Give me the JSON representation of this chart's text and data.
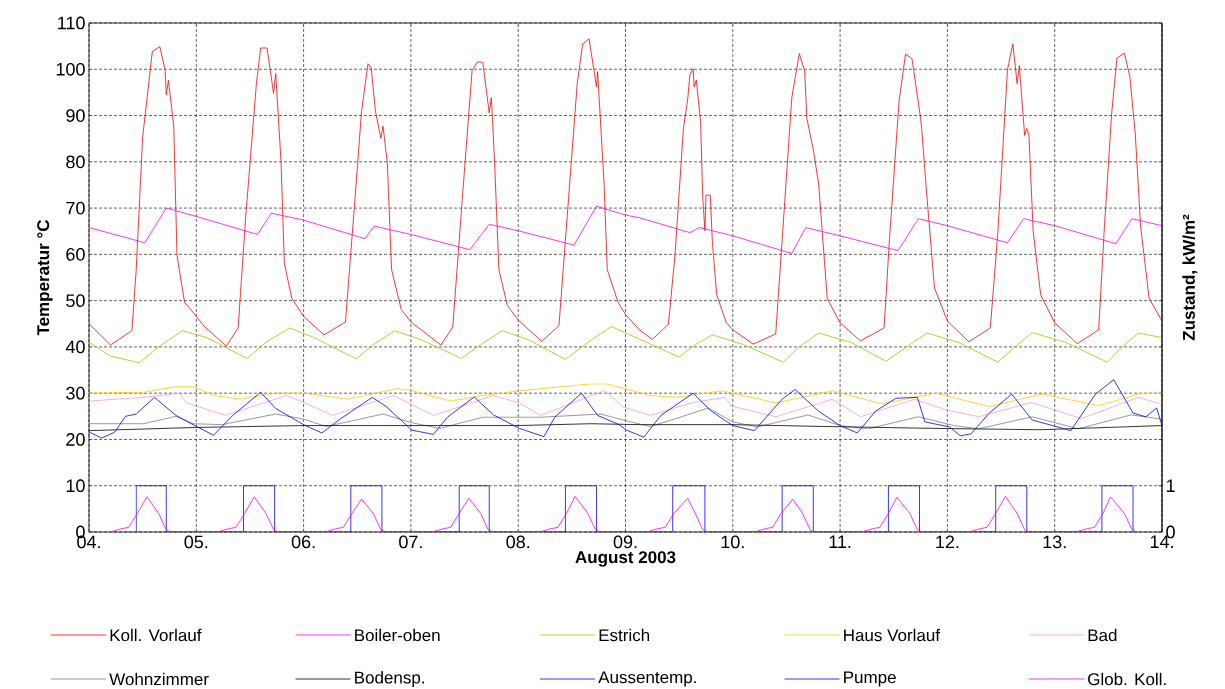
{
  "chart_data": {
    "type": "line",
    "xlabel": "August 2003",
    "ylabel": "Temperatur °C",
    "y2label": "Zustand, kW/m²",
    "xlim": [
      4,
      14
    ],
    "xticks": [
      {
        "value": 4,
        "label": "04."
      },
      {
        "value": 5,
        "label": "05."
      },
      {
        "value": 6,
        "label": "06."
      },
      {
        "value": 7,
        "label": "07."
      },
      {
        "value": 8,
        "label": "08."
      },
      {
        "value": 9,
        "label": "09."
      },
      {
        "value": 10,
        "label": "10."
      },
      {
        "value": 11,
        "label": "11."
      },
      {
        "value": 12,
        "label": "12."
      },
      {
        "value": 13,
        "label": "13."
      },
      {
        "value": 14,
        "label": "14."
      }
    ],
    "ylim": [
      0,
      110
    ],
    "yticks": [
      0,
      10,
      20,
      30,
      40,
      50,
      60,
      70,
      80,
      90,
      100,
      110
    ],
    "y2lim": [
      0,
      11
    ],
    "y2ticks": [
      0,
      1
    ],
    "grid": true,
    "legend": "bottom",
    "marker": "none",
    "line_style": "solid",
    "series": [
      {
        "name": "Koll. Vorlauf",
        "color": "#ff0000",
        "x": [
          4.0,
          4.2,
          4.4,
          4.44,
          4.5,
          4.59,
          4.66,
          4.71,
          4.72,
          4.74,
          4.79,
          4.82,
          4.89,
          5.0,
          5.08,
          5.28,
          5.39,
          5.46,
          5.56,
          5.6,
          5.66,
          5.72,
          5.74,
          5.79,
          5.82,
          5.89,
          6.0,
          6.19,
          6.39,
          6.48,
          6.54,
          6.6,
          6.63,
          6.67,
          6.72,
          6.74,
          6.78,
          6.82,
          6.91,
          7.0,
          7.28,
          7.39,
          7.48,
          7.57,
          7.62,
          7.67,
          7.73,
          7.75,
          7.78,
          7.82,
          7.9,
          8.0,
          8.22,
          8.38,
          8.47,
          8.55,
          8.6,
          8.66,
          8.73,
          8.74,
          8.8,
          8.83,
          8.93,
          9.0,
          9.13,
          9.25,
          9.4,
          9.46,
          9.54,
          9.58,
          9.6,
          9.63,
          9.64,
          9.66,
          9.7,
          9.72,
          9.74,
          9.75,
          9.79,
          9.81,
          9.85,
          9.94,
          10.0,
          10.19,
          10.4,
          10.46,
          10.55,
          10.62,
          10.67,
          10.69,
          10.75,
          10.8,
          10.88,
          11.0,
          11.19,
          11.41,
          11.46,
          11.55,
          11.61,
          11.67,
          11.75,
          11.76,
          11.81,
          11.88,
          12.0,
          12.2,
          12.4,
          12.47,
          12.56,
          12.61,
          12.65,
          12.67,
          12.72,
          12.74,
          12.76,
          12.8,
          12.87,
          13.0,
          13.21,
          13.41,
          13.46,
          13.53,
          13.58,
          13.65,
          13.7,
          13.75,
          13.8,
          13.88,
          14.0
        ],
        "values": [
          45,
          40.4,
          43.5,
          56.7,
          85.3,
          103.8,
          104.9,
          99.7,
          94.5,
          97.6,
          87.7,
          59.8,
          49.7,
          46.6,
          44.3,
          40.2,
          44.1,
          68,
          96.9,
          104.6,
          104.6,
          94.8,
          99.1,
          79.9,
          58.2,
          50.5,
          46.6,
          42.6,
          45.4,
          72.3,
          90.9,
          101.2,
          100.3,
          90.9,
          85.1,
          87.7,
          79.9,
          56.7,
          48.1,
          45.4,
          40.4,
          44.3,
          72.3,
          99.7,
          101.6,
          101.5,
          90.6,
          93.9,
          79.9,
          56.7,
          48.9,
          45.8,
          41.2,
          44.6,
          72.3,
          96.9,
          105.4,
          106.6,
          96.2,
          99.5,
          75.4,
          56.7,
          49.7,
          47.0,
          43.7,
          41.6,
          44.9,
          59.5,
          87.2,
          93.6,
          98.8,
          100.1,
          96.2,
          97.7,
          88.7,
          72.2,
          65.1,
          72.8,
          72.8,
          62.5,
          51.2,
          45.2,
          43.7,
          40.6,
          42.8,
          63.2,
          93.9,
          103.4,
          99.6,
          89.4,
          82.7,
          75.2,
          50.5,
          45.2,
          41.3,
          44.1,
          63.2,
          93.2,
          103.3,
          102.3,
          89.4,
          87.2,
          72.2,
          52.7,
          45.6,
          41.1,
          44.1,
          64.7,
          99.9,
          105.5,
          96.9,
          100.8,
          85.7,
          87.2,
          85.7,
          64.7,
          51.2,
          45.2,
          40.7,
          43.7,
          64.7,
          90.2,
          102.4,
          103.5,
          98.4,
          86.4,
          66.2,
          50.5,
          45.6
        ]
      },
      {
        "name": "Boiler-oben",
        "color": "#ff00ff",
        "x": [
          4.0,
          4.52,
          4.72,
          5.0,
          5.57,
          5.7,
          6.0,
          6.57,
          6.66,
          7.0,
          7.55,
          7.73,
          8.0,
          8.52,
          8.73,
          9.0,
          9.13,
          9.6,
          9.69,
          10.0,
          10.55,
          10.68,
          11.0,
          11.54,
          11.73,
          12.0,
          12.56,
          12.71,
          13.0,
          13.57,
          13.72,
          14.0
        ],
        "values": [
          65.8,
          62.5,
          70,
          68.2,
          64.3,
          68.9,
          67.4,
          63.4,
          66.1,
          64.3,
          61.0,
          66.5,
          65.1,
          62.0,
          70.4,
          68.5,
          67.9,
          64.7,
          65.8,
          64.0,
          60.2,
          65.8,
          64.0,
          60.8,
          67.7,
          66.2,
          62.5,
          67.7,
          66.2,
          62.3,
          67.7,
          66.2
        ]
      },
      {
        "name": "Estrich",
        "color": "#99cc00",
        "x": [
          4.0,
          4.2,
          4.47,
          4.65,
          4.87,
          5.1,
          5.47,
          5.65,
          5.87,
          6.1,
          6.49,
          6.65,
          6.85,
          7.1,
          7.47,
          7.65,
          7.85,
          8.1,
          8.44,
          8.65,
          8.87,
          9.1,
          9.5,
          9.65,
          9.81,
          10.1,
          10.47,
          10.62,
          10.8,
          11.1,
          11.43,
          11.62,
          11.81,
          12.1,
          12.47,
          12.63,
          12.79,
          13.1,
          13.49,
          13.63,
          13.78,
          14.0
        ],
        "values": [
          41,
          38,
          36.6,
          40,
          43.5,
          42,
          37.5,
          41,
          44.1,
          42,
          37.4,
          40.5,
          43.5,
          41.5,
          37.5,
          40.5,
          43.5,
          41.5,
          37.3,
          41,
          44.4,
          42,
          37.8,
          40.5,
          42.6,
          40.5,
          36.7,
          40,
          43.0,
          41,
          36.9,
          40,
          43,
          41,
          36.7,
          40,
          43.1,
          41,
          36.7,
          40,
          43,
          42
        ]
      },
      {
        "name": "Haus Vorlauf",
        "color": "#ffcc00",
        "x": [
          4.0,
          4.51,
          4.81,
          4.97,
          5.17,
          5.41,
          5.74,
          6.0,
          6.41,
          6.87,
          7.0,
          7.37,
          7.67,
          8.01,
          8.67,
          8.83,
          9.23,
          9.47,
          9.9,
          10.4,
          10.93,
          11.39,
          11.89,
          12.39,
          12.88,
          13.41,
          13.81,
          14.0
        ],
        "values": [
          30,
          30.2,
          31.4,
          31.4,
          29.5,
          28.7,
          30,
          30,
          28.7,
          31.0,
          30.6,
          28.3,
          29.5,
          30.5,
          32.0,
          32.0,
          29.5,
          29.1,
          30.5,
          27.9,
          30.5,
          27.7,
          30,
          27.1,
          29.8,
          27.3,
          30,
          30
        ]
      },
      {
        "name": "Bad",
        "color": "#ff99cc",
        "x": [
          4.0,
          4.51,
          4.84,
          4.91,
          5.27,
          5.84,
          6.01,
          6.27,
          6.84,
          7.21,
          7.77,
          8.01,
          8.21,
          8.81,
          8.97,
          9.23,
          9.63,
          9.93,
          9.99,
          10.4,
          10.93,
          11.19,
          11.69,
          11.99,
          12.29,
          12.78,
          13.25,
          13.78,
          14.0
        ],
        "values": [
          28.3,
          29.1,
          30,
          27.9,
          25.2,
          29.5,
          27.9,
          25.2,
          29.5,
          25.2,
          29.5,
          27.9,
          25.2,
          30.6,
          27.1,
          25.2,
          28,
          29.1,
          27.2,
          24.9,
          28.7,
          24.9,
          28.7,
          26.4,
          24.9,
          28,
          24.5,
          29.1,
          27.6
        ]
      },
      {
        "name": "Wohnzimmer",
        "color": "#808080",
        "x": [
          4.0,
          4.51,
          4.81,
          4.97,
          5.24,
          5.74,
          6.0,
          6.21,
          6.74,
          7.01,
          7.27,
          7.67,
          8.21,
          8.77,
          9.01,
          9.23,
          9.47,
          9.77,
          10.0,
          10.23,
          10.7,
          11.0,
          11.26,
          11.73,
          12.06,
          12.29,
          12.79,
          13.22,
          13.71,
          14.0
        ],
        "values": [
          23.4,
          23.4,
          25,
          23.4,
          23.2,
          25.5,
          24.4,
          22.8,
          25.5,
          23.6,
          22.4,
          24.8,
          24.8,
          25.5,
          24.0,
          22.8,
          24.5,
          26.8,
          23.8,
          22.7,
          25.3,
          23.0,
          22.3,
          24.9,
          23.0,
          22.3,
          24.9,
          22.3,
          25.3,
          24.4
        ]
      },
      {
        "name": "Bodensp.",
        "color": "#000000",
        "x": [
          4.0,
          5.0,
          6.0,
          7.0,
          8.0,
          8.67,
          9.14,
          10.0,
          10.86,
          11.86,
          12.86,
          14.0
        ],
        "values": [
          21.9,
          22.6,
          23.0,
          23.0,
          23.0,
          23.4,
          23.2,
          23.2,
          22.8,
          22.4,
          22.1,
          23.0
        ]
      },
      {
        "name": "Aussentemp.",
        "color": "#0000ff",
        "x": [
          4.0,
          4.12,
          4.24,
          4.34,
          4.44,
          4.61,
          4.81,
          4.97,
          5.16,
          5.34,
          5.6,
          5.74,
          6.0,
          6.17,
          6.34,
          6.64,
          6.77,
          7.01,
          7.21,
          7.34,
          7.59,
          7.77,
          8.01,
          8.24,
          8.34,
          8.59,
          8.74,
          8.94,
          9.01,
          9.17,
          9.33,
          9.63,
          9.8,
          10.0,
          10.2,
          10.46,
          10.58,
          10.8,
          11.0,
          11.16,
          11.33,
          11.52,
          11.72,
          11.79,
          12.02,
          12.12,
          12.22,
          12.39,
          12.6,
          12.79,
          12.98,
          13.15,
          13.38,
          13.55,
          13.73,
          13.85,
          13.95,
          14.0
        ],
        "values": [
          21.6,
          20.3,
          21.6,
          25.0,
          25.5,
          29.1,
          25.2,
          23.2,
          20.9,
          25.2,
          30.2,
          26.7,
          23.2,
          21.4,
          24.4,
          29.1,
          27.1,
          22.0,
          21.1,
          24.8,
          29.2,
          25.3,
          22.4,
          20.6,
          24.8,
          30,
          25.2,
          23.2,
          22.0,
          20.5,
          25.2,
          30,
          26.1,
          23.0,
          21.9,
          28.7,
          30.8,
          26.1,
          23.0,
          21.4,
          26.1,
          28.9,
          29.1,
          23.8,
          22.7,
          20.8,
          21.2,
          25.7,
          29.8,
          24.2,
          23.0,
          21.9,
          29.8,
          32.9,
          25.7,
          24.9,
          26.8,
          23.0
        ]
      },
      {
        "name": "Pumpe",
        "color": "#0000ff",
        "axis": "y2",
        "x": [
          4.44,
          4.44,
          4.72,
          4.72,
          5.44,
          5.44,
          5.73,
          5.73,
          6.44,
          6.44,
          6.73,
          6.73,
          7.45,
          7.45,
          7.73,
          7.73,
          8.44,
          8.44,
          8.73,
          8.73,
          9.44,
          9.44,
          9.74,
          9.74,
          10.46,
          10.46,
          10.75,
          10.75,
          11.45,
          11.45,
          11.74,
          11.74,
          12.45,
          12.45,
          12.74,
          12.74,
          13.44,
          13.44,
          13.73,
          13.73
        ],
        "values": [
          0,
          1,
          1,
          0,
          0,
          1,
          1,
          0,
          0,
          1,
          1,
          0,
          0,
          1,
          1,
          0,
          0,
          1,
          1,
          0,
          0,
          1,
          1,
          0,
          0,
          1,
          1,
          0,
          0,
          1,
          1,
          0,
          0,
          1,
          1,
          0,
          0,
          1,
          1,
          0
        ]
      },
      {
        "name": "Glob. Koll.",
        "color": "#ff00ff",
        "axis": "y2",
        "x": [
          4.2,
          4.3,
          4.37,
          4.45,
          4.54,
          4.65,
          4.72,
          4.76,
          5.2,
          5.3,
          5.37,
          5.45,
          5.54,
          5.65,
          5.72,
          5.76,
          6.2,
          6.3,
          6.37,
          6.45,
          6.54,
          6.65,
          6.72,
          6.76,
          7.2,
          7.3,
          7.37,
          7.45,
          7.54,
          7.65,
          7.72,
          7.76,
          8.2,
          8.3,
          8.37,
          8.45,
          8.53,
          8.65,
          8.72,
          8.76,
          9.2,
          9.3,
          9.37,
          9.45,
          9.58,
          9.65,
          9.72,
          9.76,
          10.2,
          10.3,
          10.37,
          10.45,
          10.56,
          10.65,
          10.72,
          10.76,
          11.2,
          11.3,
          11.37,
          11.45,
          11.53,
          11.65,
          11.72,
          11.76,
          12.2,
          12.3,
          12.37,
          12.45,
          12.54,
          12.65,
          12.72,
          12.76,
          13.2,
          13.3,
          13.37,
          13.45,
          13.52,
          13.65,
          13.72,
          13.76
        ],
        "values": [
          0,
          0.07,
          0.1,
          0.4,
          0.76,
          0.4,
          0.05,
          0,
          0,
          0.07,
          0.1,
          0.4,
          0.76,
          0.4,
          0.05,
          0,
          0,
          0.07,
          0.1,
          0.4,
          0.71,
          0.4,
          0.05,
          0,
          0,
          0.07,
          0.1,
          0.4,
          0.73,
          0.4,
          0.05,
          0,
          0,
          0.07,
          0.1,
          0.4,
          0.77,
          0.4,
          0.05,
          0,
          0,
          0.07,
          0.1,
          0.4,
          0.73,
          0.4,
          0.05,
          0,
          0,
          0.07,
          0.1,
          0.4,
          0.71,
          0.4,
          0.05,
          0,
          0,
          0.07,
          0.1,
          0.4,
          0.75,
          0.4,
          0.05,
          0,
          0,
          0.07,
          0.1,
          0.4,
          0.77,
          0.4,
          0.05,
          0,
          0,
          0.07,
          0.1,
          0.4,
          0.76,
          0.4,
          0.05,
          0
        ]
      }
    ]
  }
}
